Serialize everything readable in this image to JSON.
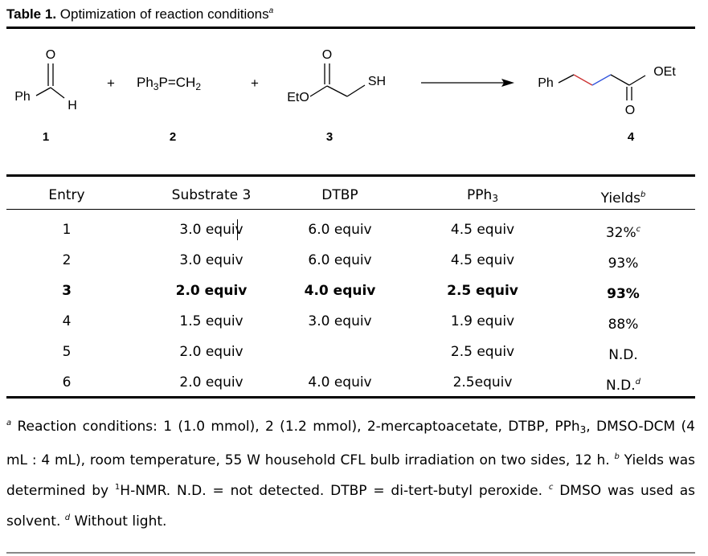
{
  "caption": {
    "label": "Table 1.",
    "text": "Optimization of reaction conditions",
    "note_mark": "a"
  },
  "scheme": {
    "compound1": {
      "o": "O",
      "ph": "Ph",
      "h": "H",
      "number": "1"
    },
    "plus1": "+",
    "compound2": {
      "text_a": "Ph",
      "sub_a": "3",
      "text_b": "P=CH",
      "sub_b": "2",
      "number": "2"
    },
    "plus2": "+",
    "compound3": {
      "o": "O",
      "eto": "EtO",
      "sh": "SH",
      "number": "3"
    },
    "product4": {
      "ph": "Ph",
      "oet": "OEt",
      "o": "O",
      "number": "4"
    },
    "colors": {
      "bond": "#000000",
      "highlight_bond": "#3355dd",
      "highlight_bond_2": "#cc3333"
    }
  },
  "table": {
    "headers": {
      "entry": "Entry",
      "substrate": "Substrate 3",
      "dtbp": "DTBP",
      "pph3_base": "PPh",
      "pph3_sub": "3",
      "yield_base": "Yields",
      "yield_mark": "b"
    },
    "rows": [
      {
        "entry": "1",
        "substrate": "3.0 equiv",
        "dtbp": "6.0 equiv",
        "pph3": "4.5 equiv",
        "yield": "32%",
        "mark": "c"
      },
      {
        "entry": "2",
        "substrate": "3.0 equiv",
        "dtbp": "6.0 equiv",
        "pph3": "4.5 equiv",
        "yield": "93%",
        "mark": ""
      },
      {
        "entry": "3",
        "substrate": "2.0 equiv",
        "dtbp": "4.0 equiv",
        "pph3": "2.5 equiv",
        "yield": "93%",
        "mark": "",
        "bold": true
      },
      {
        "entry": "4",
        "substrate": "1.5 equiv",
        "dtbp": "3.0 equiv",
        "pph3": "1.9 equiv",
        "yield": "88%",
        "mark": ""
      },
      {
        "entry": "5",
        "substrate": "2.0 equiv",
        "dtbp": "",
        "pph3": "2.5 equiv",
        "yield": "N.D.",
        "mark": ""
      },
      {
        "entry": "6",
        "substrate": "2.0 equiv",
        "dtbp": "4.0 equiv",
        "pph3": "2.5equiv",
        "yield": "N.D.",
        "mark": "d"
      }
    ]
  },
  "footnotes": {
    "mark_a": "a",
    "text_a1": " Reaction conditions: 1 (1.0 mmol), 2 (1.2 mmol), 2-mercaptoacetate, DTBP, PPh",
    "sub_a": "3",
    "text_a2": ", DMSO-DCM (4 mL : 4 mL), room temperature, 55 W household CFL bulb irradiation on two sides, 12 h. ",
    "mark_b": "b",
    "text_b1": " Yields was determined by ",
    "sup_nmr": "1",
    "text_b2": "H-NMR. N.D. = not detected. DTBP = di-tert-butyl peroxide. ",
    "mark_c": "c",
    "text_c": " DMSO was used as solvent.  ",
    "mark_d": "d",
    "text_d": " Without light."
  }
}
